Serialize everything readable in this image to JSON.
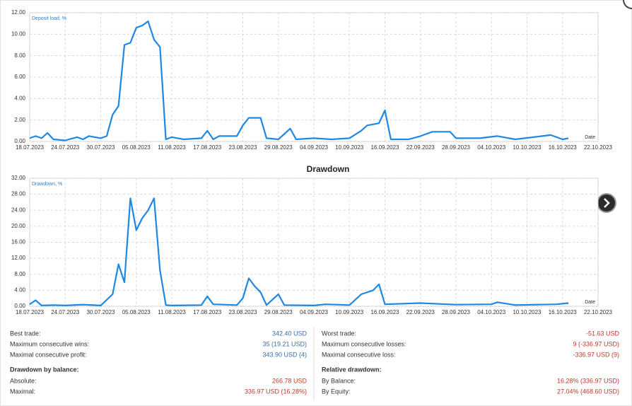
{
  "chart_data": [
    {
      "type": "line",
      "ylabel": "Deposit load, %",
      "xlabel": "Date",
      "color": "#1e88e5",
      "grid": true,
      "xlim": [
        "18.07.2023",
        "22.10.2023"
      ],
      "xticks": [
        "18.07.2023",
        "24.07.2023",
        "30.07.2023",
        "05.08.2023",
        "11.08.2023",
        "17.08.2023",
        "23.08.2023",
        "29.08.2023",
        "04.09.2023",
        "10.09.2023",
        "16.09.2023",
        "22.09.2023",
        "28.09.2023",
        "04.10.2023",
        "10.10.2023",
        "16.10.2023",
        "22.10.2023"
      ],
      "ylim": [
        0,
        12
      ],
      "yticks": [
        {
          "value": 0,
          "label": "0.00"
        },
        {
          "value": 2,
          "label": "2.00"
        },
        {
          "value": 4,
          "label": "4.00"
        },
        {
          "value": 6,
          "label": "6.00"
        },
        {
          "value": 8,
          "label": "8.00"
        },
        {
          "value": 10,
          "label": "10.00"
        },
        {
          "value": 12,
          "label": "12.00"
        }
      ],
      "x": [
        "18.07.2023",
        "19.07.2023",
        "20.07.2023",
        "21.07.2023",
        "22.07.2023",
        "24.07.2023",
        "26.07.2023",
        "27.07.2023",
        "28.07.2023",
        "30.07.2023",
        "31.07.2023",
        "01.08.2023",
        "02.08.2023",
        "03.08.2023",
        "04.08.2023",
        "05.08.2023",
        "06.08.2023",
        "07.08.2023",
        "08.08.2023",
        "09.08.2023",
        "10.08.2023",
        "11.08.2023",
        "13.08.2023",
        "16.08.2023",
        "17.08.2023",
        "18.08.2023",
        "19.08.2023",
        "22.08.2023",
        "23.08.2023",
        "24.08.2023",
        "26.08.2023",
        "27.08.2023",
        "29.08.2023",
        "31.08.2023",
        "01.09.2023",
        "04.09.2023",
        "07.09.2023",
        "10.09.2023",
        "12.09.2023",
        "13.09.2023",
        "15.09.2023",
        "16.09.2023",
        "17.09.2023",
        "20.09.2023",
        "22.09.2023",
        "24.09.2023",
        "27.09.2023",
        "28.09.2023",
        "02.10.2023",
        "05.10.2023",
        "08.10.2023",
        "14.10.2023",
        "16.10.2023",
        "17.10.2023"
      ],
      "values": [
        0.3,
        0.5,
        0.3,
        0.8,
        0.2,
        0.1,
        0.4,
        0.2,
        0.5,
        0.3,
        0.5,
        2.5,
        3.3,
        9.0,
        9.2,
        10.6,
        10.8,
        11.2,
        9.5,
        8.8,
        0.2,
        0.4,
        0.2,
        0.3,
        1.0,
        0.2,
        0.5,
        0.5,
        1.5,
        2.2,
        2.2,
        0.3,
        0.2,
        1.2,
        0.2,
        0.3,
        0.2,
        0.3,
        1.0,
        1.5,
        1.7,
        2.9,
        0.2,
        0.2,
        0.5,
        0.9,
        0.9,
        0.3,
        0.3,
        0.5,
        0.2,
        0.6,
        0.2,
        0.3
      ]
    },
    {
      "type": "line",
      "title": "Drawdown",
      "ylabel": "Drawdown, %",
      "xlabel": "Date",
      "color": "#1e88e5",
      "grid": true,
      "xlim": [
        "18.07.2023",
        "22.10.2023"
      ],
      "xticks": [
        "18.07.2023",
        "24.07.2023",
        "30.07.2023",
        "05.08.2023",
        "11.08.2023",
        "17.08.2023",
        "23.08.2023",
        "29.08.2023",
        "04.09.2023",
        "10.09.2023",
        "16.09.2023",
        "22.09.2023",
        "28.09.2023",
        "04.10.2023",
        "10.10.2023",
        "16.10.2023",
        "22.10.2023"
      ],
      "ylim": [
        0,
        32
      ],
      "yticks": [
        {
          "value": 0,
          "label": "0.00"
        },
        {
          "value": 4,
          "label": "4.00"
        },
        {
          "value": 8,
          "label": "8.00"
        },
        {
          "value": 12,
          "label": "12.00"
        },
        {
          "value": 16,
          "label": "16.00"
        },
        {
          "value": 20,
          "label": "20.00"
        },
        {
          "value": 24,
          "label": "24.00"
        },
        {
          "value": 28,
          "label": "28.00"
        },
        {
          "value": 32,
          "label": "32.00"
        }
      ],
      "x": [
        "18.07.2023",
        "19.07.2023",
        "20.07.2023",
        "22.07.2023",
        "24.07.2023",
        "27.07.2023",
        "30.07.2023",
        "01.08.2023",
        "02.08.2023",
        "03.08.2023",
        "04.08.2023",
        "05.08.2023",
        "06.08.2023",
        "07.08.2023",
        "08.08.2023",
        "09.08.2023",
        "10.08.2023",
        "11.08.2023",
        "16.08.2023",
        "17.08.2023",
        "18.08.2023",
        "22.08.2023",
        "23.08.2023",
        "24.08.2023",
        "25.08.2023",
        "26.08.2023",
        "27.08.2023",
        "29.08.2023",
        "30.08.2023",
        "04.09.2023",
        "06.09.2023",
        "10.09.2023",
        "12.09.2023",
        "14.09.2023",
        "15.09.2023",
        "16.09.2023",
        "22.09.2023",
        "28.09.2023",
        "04.10.2023",
        "05.10.2023",
        "08.10.2023",
        "15.10.2023",
        "17.10.2023"
      ],
      "values": [
        0.5,
        1.5,
        0.2,
        0.3,
        0.2,
        0.4,
        0.2,
        3,
        10.5,
        6,
        27,
        19,
        22,
        24,
        27,
        9,
        0.3,
        0.2,
        0.3,
        2.5,
        0.5,
        0.3,
        2,
        7,
        5,
        3.5,
        0.3,
        3,
        0.3,
        0.2,
        0.5,
        0.3,
        3,
        4,
        5.5,
        0.5,
        0.8,
        0.4,
        0.5,
        1,
        0.3,
        0.5,
        0.8
      ]
    }
  ],
  "stats": {
    "left": [
      {
        "rows": [
          [
            "Best trade:",
            "342.40 USD"
          ],
          [
            "Maximum consecutive wins:",
            "35 (19.21 USD)"
          ],
          [
            "Maximal consecutive profit:",
            "343.90 USD (4)"
          ]
        ]
      },
      {
        "heading": "Drawdown by balance:",
        "rows": [
          [
            "Absolute:",
            "266.78 USD"
          ],
          [
            "Maximal:",
            "336.97 USD (16.28%)"
          ]
        ]
      }
    ],
    "right": [
      {
        "rows": [
          [
            "Worst trade:",
            "-51.63 USD"
          ],
          [
            "Maximum consecutive losses:",
            "9 (-336.97 USD)"
          ],
          [
            "Maximal consecutive loss:",
            "-336.97 USD (9)"
          ]
        ]
      },
      {
        "heading": "Relative drawdown:",
        "rows": [
          [
            "By Balance:",
            "16.28% (336.97 USD)"
          ],
          [
            "By Equity:",
            "27.04% (468.60 USD)"
          ]
        ]
      }
    ]
  }
}
